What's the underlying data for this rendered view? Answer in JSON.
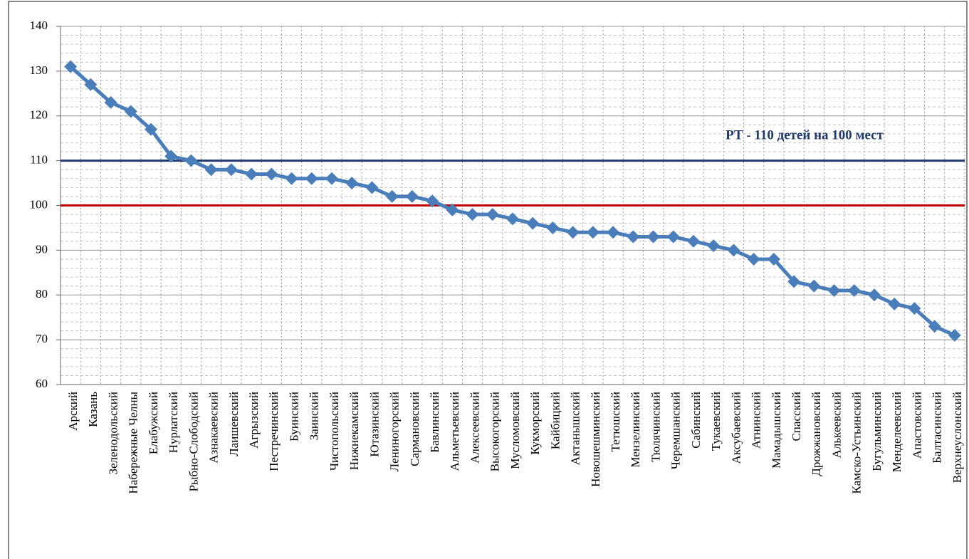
{
  "chart_data": {
    "type": "line",
    "categories": [
      "Арский",
      "Казань",
      "Зеленодольский",
      "Набережные Челны",
      "Елабужский",
      "Нурлатский",
      "Рыбно-Слободский",
      "Азнакаевский",
      "Лаишевский",
      "Агрызский",
      "Пестречинский",
      "Буинский",
      "Заинский",
      "Чистопольский",
      "Нижнекамский",
      "Ютазинский",
      "Лениногорский",
      "Сармановский",
      "Бавлинский",
      "Альметьевский",
      "Алексеевский",
      "Высокогорский",
      "Мусломовский",
      "Кукморский",
      "Кайбицкий",
      "Актанышский",
      "Новошешминский",
      "Тетюшский",
      "Мензелинский",
      "Тюлячинский",
      "Черемшанский",
      "Сабинский",
      "Тукаевский",
      "Аксубаевский",
      "Атнинский",
      "Мамадышский",
      "Спасский",
      "Дрожжановский",
      "Алькеевский",
      "Камско-Устьинский",
      "Бугульминский",
      "Менделеевский",
      "Апастовский",
      "Балтасинский",
      "Верхнеуслонский"
    ],
    "values": [
      131,
      127,
      123,
      121,
      117,
      111,
      110,
      108,
      108,
      107,
      107,
      106,
      106,
      106,
      105,
      104,
      102,
      102,
      101,
      99,
      98,
      98,
      97,
      96,
      95,
      94,
      94,
      94,
      93,
      93,
      93,
      92,
      91,
      90,
      88,
      88,
      83,
      82,
      81,
      81,
      80,
      78,
      77,
      73,
      71
    ],
    "color": "#4a7ebb",
    "ylim": [
      60,
      140
    ],
    "yticks": [
      60,
      70,
      80,
      90,
      100,
      110,
      120,
      130,
      140
    ],
    "grid": true,
    "reference_lines": [
      {
        "value": 110,
        "color": "#1f3a6e"
      },
      {
        "value": 100,
        "color": "#c00000"
      }
    ],
    "annotation": "РТ - 110 детей на 100 мест"
  }
}
